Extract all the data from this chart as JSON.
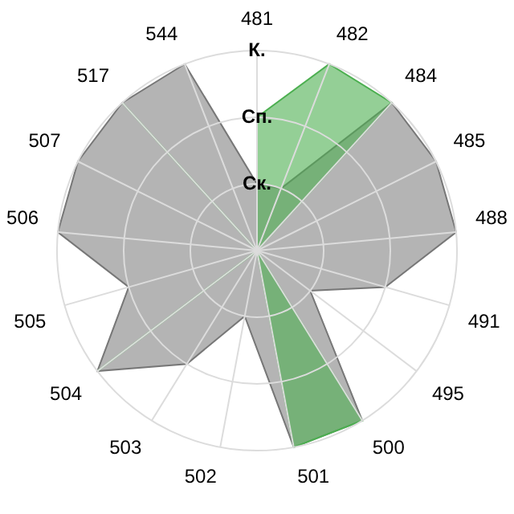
{
  "chart_data": {
    "type": "radar",
    "categories": [
      "481",
      "482",
      "484",
      "485",
      "488",
      "491",
      "495",
      "500",
      "501",
      "502",
      "503",
      "504",
      "505",
      "506",
      "507",
      "517",
      "544"
    ],
    "series": [
      {
        "color": "#b4b4b4",
        "values": [
          1,
          1,
          3,
          3,
          3,
          2,
          1,
          3,
          3,
          1,
          2,
          3,
          2,
          3,
          3,
          3,
          3
        ]
      },
      {
        "color": "#4caf50",
        "values": [
          2,
          3,
          3,
          0,
          0,
          0,
          0,
          3,
          3,
          0,
          0,
          3,
          0,
          0,
          0,
          3,
          0
        ]
      }
    ],
    "ylim": [
      0,
      3
    ],
    "yticks": [
      {
        "value": 1,
        "label": "Ск."
      },
      {
        "value": 2,
        "label": "Сп."
      },
      {
        "value": 3,
        "label": "К."
      }
    ],
    "grid": true,
    "legend": false
  }
}
